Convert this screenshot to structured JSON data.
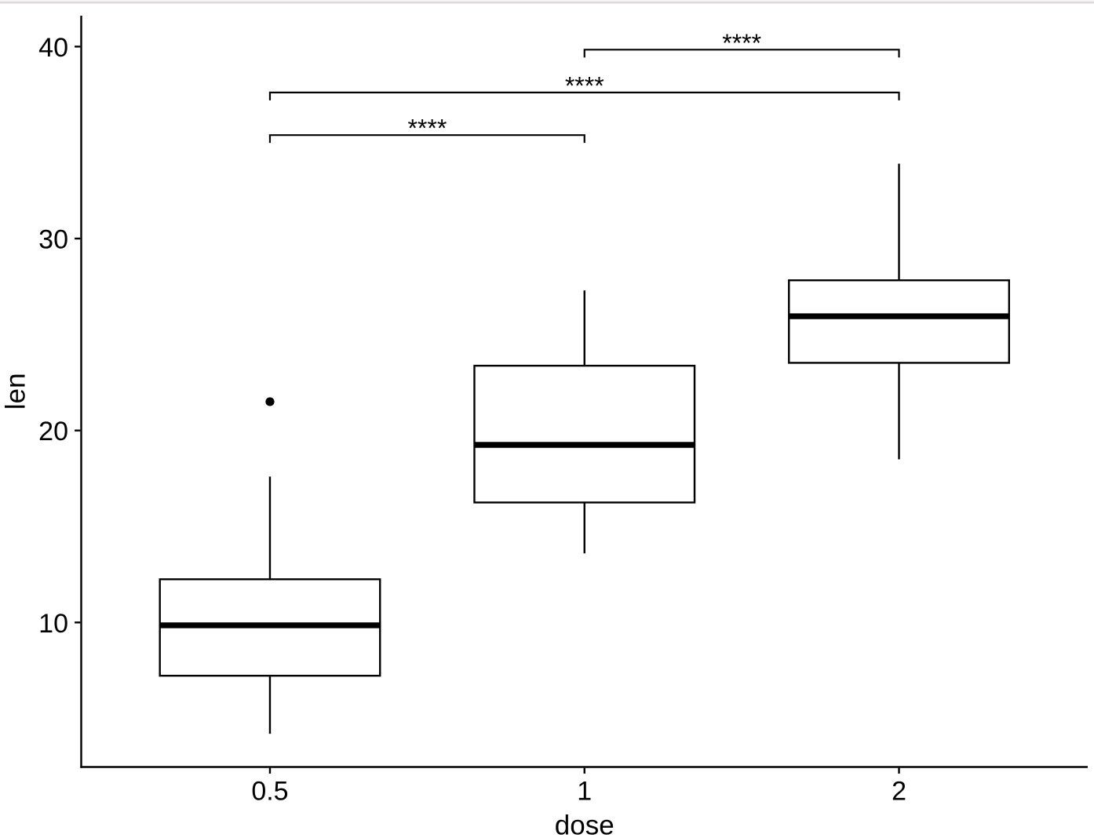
{
  "chart_data": {
    "type": "boxplot",
    "title": "",
    "xlabel": "dose",
    "ylabel": "len",
    "categories": [
      "0.5",
      "1",
      "2"
    ],
    "y_ticks": [
      10,
      20,
      30,
      40
    ],
    "ylim": [
      2.47,
      41.61
    ],
    "x_expand": 0.6,
    "box_width_units": 0.7,
    "grid": false,
    "legend": "none",
    "boxes": [
      {
        "category": "0.5",
        "lower_whisker": 4.2,
        "q1": 7.225,
        "median": 9.85,
        "q3": 12.25,
        "upper_whisker": 17.6,
        "outliers": [
          21.5
        ]
      },
      {
        "category": "1",
        "lower_whisker": 13.6,
        "q1": 16.25,
        "median": 19.25,
        "q3": 23.375,
        "upper_whisker": 27.3,
        "outliers": []
      },
      {
        "category": "2",
        "lower_whisker": 18.5,
        "q1": 23.525,
        "median": 25.95,
        "q3": 27.825,
        "upper_whisker": 33.9,
        "outliers": []
      }
    ],
    "comparisons": [
      {
        "group1": "0.5",
        "group2": "1",
        "label": "****",
        "y_position": 35.39
      },
      {
        "group1": "0.5",
        "group2": "2",
        "label": "****",
        "y_position": 37.61
      },
      {
        "group1": "1",
        "group2": "2",
        "label": "****",
        "y_position": 39.84
      }
    ],
    "colors": {
      "stroke": "#000000",
      "box_fill": "#ffffff",
      "text": "#000000",
      "background": "#ffffff"
    }
  },
  "window": {
    "top_border_color": "#d9d8d9"
  }
}
